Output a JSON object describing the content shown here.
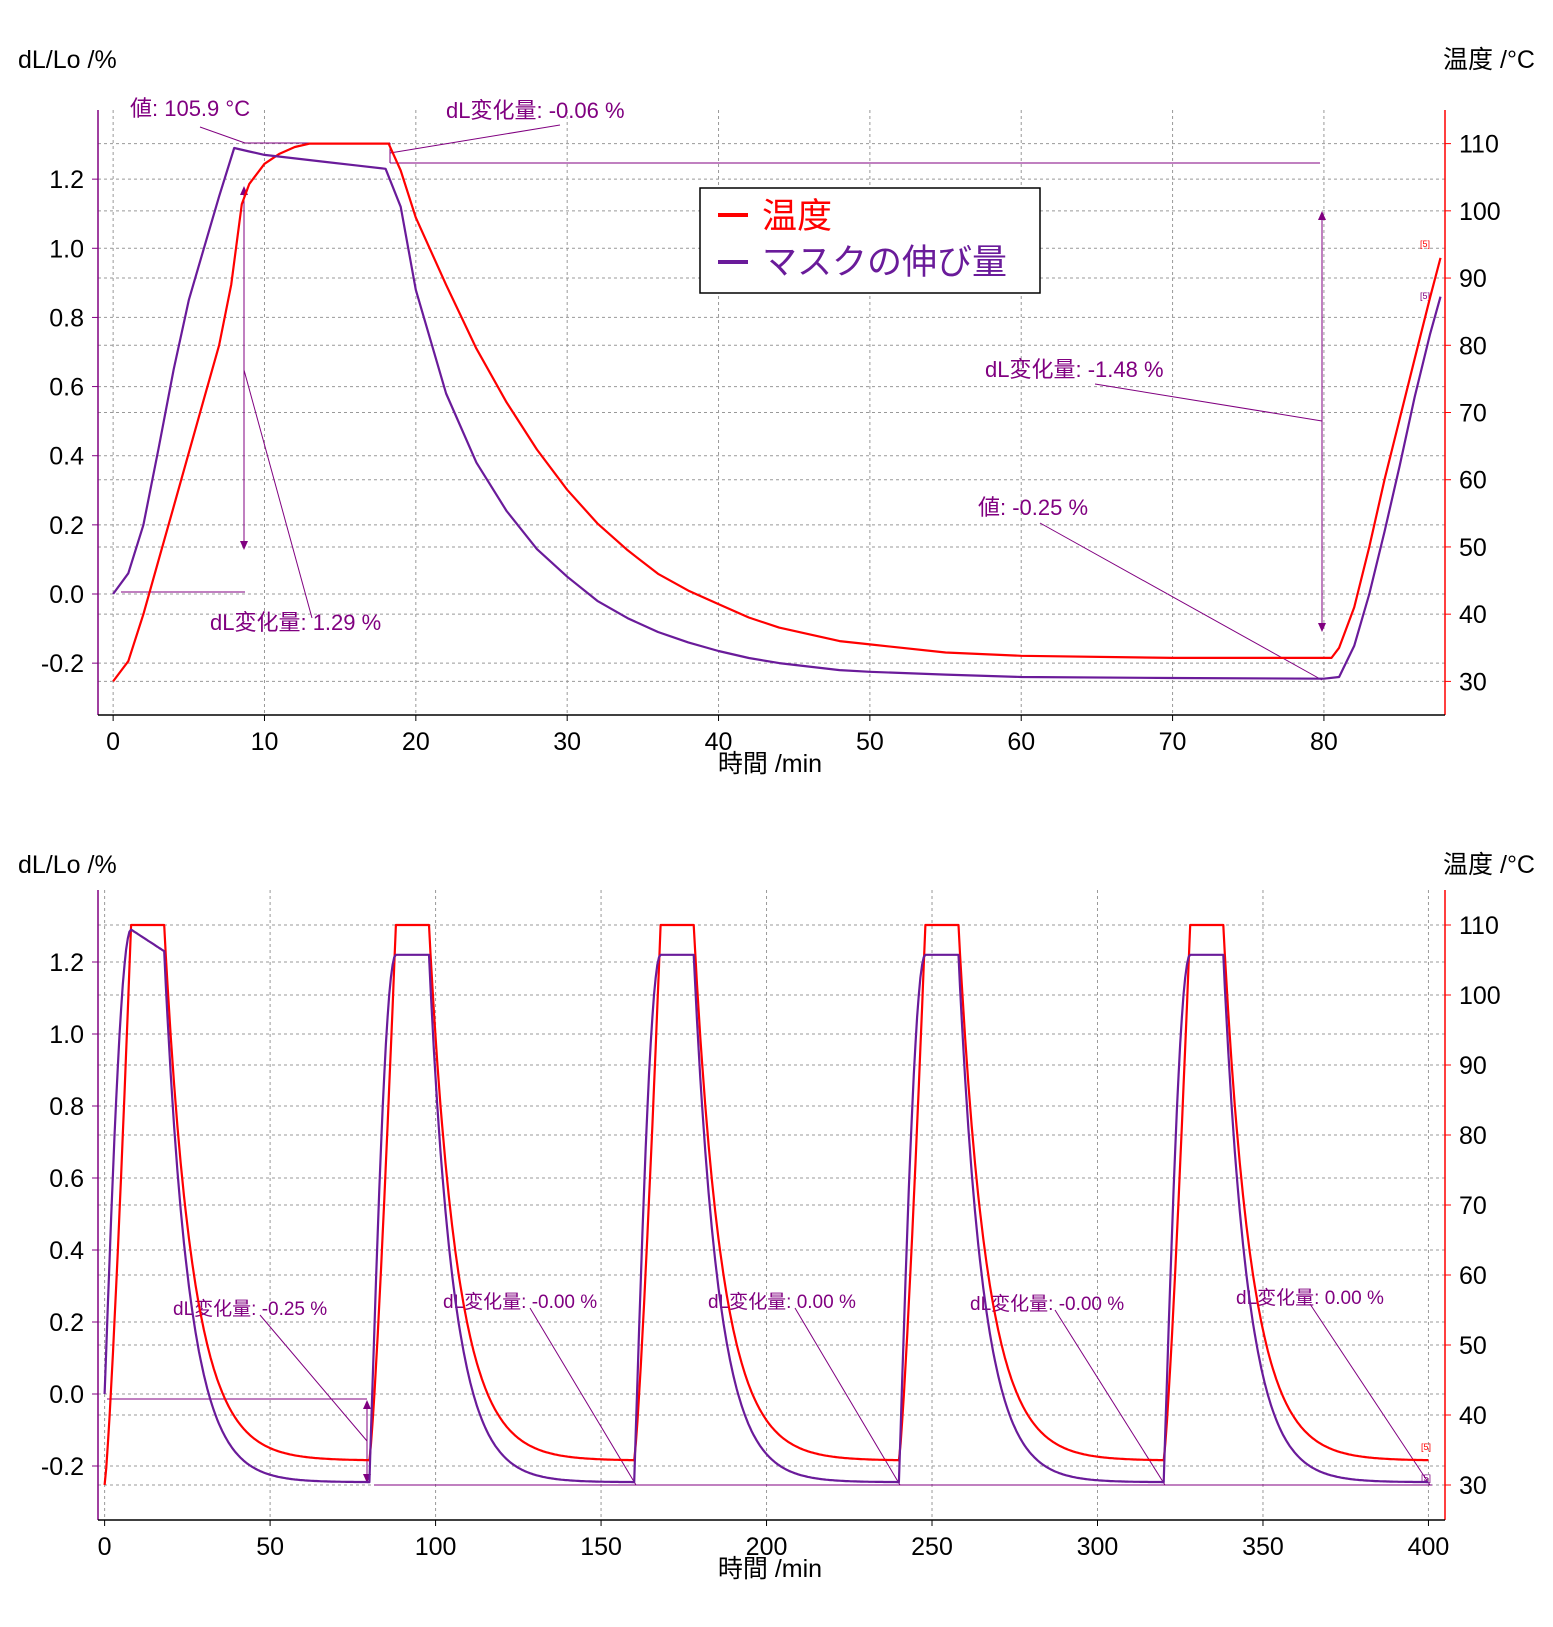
{
  "colors": {
    "temperature": "#ff0000",
    "elongation": "#6a1b9a",
    "annotation": "#800080",
    "grid": "#999999",
    "left_axis": "#800080",
    "right_axis": "#ff0000"
  },
  "chart_data": [
    {
      "type": "line",
      "title": "",
      "xlabel": "時間 /min",
      "ylabel_left": "dL/Lo /%",
      "ylabel_right": "温度 /°C",
      "xlim": [
        -1,
        88
      ],
      "ylim_left": [
        -0.35,
        1.4
      ],
      "ylim_right": [
        25,
        115
      ],
      "x_ticks": [
        "0",
        "10",
        "20",
        "30",
        "40",
        "50",
        "60",
        "70",
        "80"
      ],
      "y_left_ticks": [
        "-0.2",
        "0.0",
        "0.2",
        "0.4",
        "0.6",
        "0.8",
        "1.0",
        "1.2"
      ],
      "y_right_ticks": [
        "30",
        "40",
        "50",
        "60",
        "70",
        "80",
        "90",
        "100",
        "110"
      ],
      "grid": true,
      "legend": {
        "position": "top-center",
        "entries": [
          {
            "label": "温度",
            "series": "temperature"
          },
          {
            "label": "マスクの伸び量",
            "series": "elongation"
          }
        ]
      },
      "series": [
        {
          "name": "温度",
          "axis": "right",
          "points": [
            [
              0,
              30
            ],
            [
              1,
              33
            ],
            [
              2,
              40
            ],
            [
              3,
              48
            ],
            [
              4,
              56
            ],
            [
              5,
              64
            ],
            [
              6,
              72
            ],
            [
              7,
              80
            ],
            [
              7.8,
              89
            ],
            [
              8.5,
              101
            ],
            [
              9,
              104
            ],
            [
              10,
              107
            ],
            [
              11,
              108.5
            ],
            [
              12,
              109.5
            ],
            [
              13,
              110
            ],
            [
              18.2,
              110
            ],
            [
              19,
              106
            ],
            [
              20,
              99
            ],
            [
              22,
              89
            ],
            [
              24,
              79.5
            ],
            [
              26,
              71.5
            ],
            [
              28,
              64.5
            ],
            [
              30,
              58.5
            ],
            [
              32,
              53.5
            ],
            [
              34,
              49.5
            ],
            [
              36,
              46
            ],
            [
              38,
              43.5
            ],
            [
              40,
              41.5
            ],
            [
              42,
              39.5
            ],
            [
              44,
              38
            ],
            [
              46,
              37
            ],
            [
              48,
              36
            ],
            [
              50,
              35.5
            ],
            [
              55,
              34.3
            ],
            [
              60,
              33.8
            ],
            [
              70,
              33.5
            ],
            [
              80.5,
              33.5
            ],
            [
              81,
              35
            ],
            [
              82,
              41
            ],
            [
              83,
              50
            ],
            [
              84,
              60
            ],
            [
              85,
              69
            ],
            [
              86,
              78
            ],
            [
              87,
              87
            ],
            [
              87.7,
              93
            ]
          ]
        },
        {
          "name": "マスクの伸び量",
          "axis": "left",
          "points": [
            [
              0,
              0
            ],
            [
              1,
              0.06
            ],
            [
              2,
              0.2
            ],
            [
              3,
              0.42
            ],
            [
              4,
              0.65
            ],
            [
              5,
              0.85
            ],
            [
              6,
              1.0
            ],
            [
              7,
              1.15
            ],
            [
              8,
              1.29
            ],
            [
              9,
              1.28
            ],
            [
              10,
              1.27
            ],
            [
              12,
              1.26
            ],
            [
              14,
              1.25
            ],
            [
              16,
              1.24
            ],
            [
              18,
              1.23
            ],
            [
              19,
              1.12
            ],
            [
              20,
              0.88
            ],
            [
              22,
              0.58
            ],
            [
              24,
              0.38
            ],
            [
              26,
              0.24
            ],
            [
              28,
              0.13
            ],
            [
              30,
              0.05
            ],
            [
              32,
              -0.02
            ],
            [
              34,
              -0.07
            ],
            [
              36,
              -0.11
            ],
            [
              38,
              -0.14
            ],
            [
              40,
              -0.165
            ],
            [
              42,
              -0.185
            ],
            [
              44,
              -0.2
            ],
            [
              46,
              -0.21
            ],
            [
              48,
              -0.22
            ],
            [
              50,
              -0.225
            ],
            [
              55,
              -0.233
            ],
            [
              60,
              -0.24
            ],
            [
              70,
              -0.243
            ],
            [
              80,
              -0.245
            ],
            [
              81,
              -0.24
            ],
            [
              82,
              -0.15
            ],
            [
              83,
              0.0
            ],
            [
              84,
              0.18
            ],
            [
              85,
              0.37
            ],
            [
              86,
              0.57
            ],
            [
              87,
              0.75
            ],
            [
              87.7,
              0.86
            ]
          ]
        }
      ],
      "annotations": [
        {
          "text": "値: 105.9 °C"
        },
        {
          "text": "dL変化量: -0.06 %"
        },
        {
          "text": "dL変化量: 1.29 %"
        },
        {
          "text": "dL変化量: -1.48 %"
        },
        {
          "text": "値: -0.25 %"
        }
      ],
      "markers": [
        "[5]",
        "[5]"
      ]
    },
    {
      "type": "line",
      "title": "",
      "xlabel": "時間 /min",
      "ylabel_left": "dL/Lo /%",
      "ylabel_right": "温度 /°C",
      "xlim": [
        -2,
        405
      ],
      "ylim_left": [
        -0.35,
        1.4
      ],
      "ylim_right": [
        25,
        115
      ],
      "x_ticks": [
        "0",
        "50",
        "100",
        "150",
        "200",
        "250",
        "300",
        "350",
        "400"
      ],
      "y_left_ticks": [
        "-0.2",
        "0.0",
        "0.2",
        "0.4",
        "0.6",
        "0.8",
        "1.0",
        "1.2"
      ],
      "y_right_ticks": [
        "30",
        "40",
        "50",
        "60",
        "70",
        "80",
        "90",
        "100",
        "110"
      ],
      "grid": true,
      "cycles": {
        "starts": [
          0,
          80,
          160,
          240,
          320
        ],
        "temperature_start": [
          30,
          33.5,
          33.5,
          33.5,
          33.5
        ],
        "temperature_hold": 110,
        "temperature_end": 33.5,
        "elongation_start": [
          0,
          -0.245,
          -0.245,
          -0.245,
          -0.245
        ],
        "elongation_peak": [
          1.29,
          1.22,
          1.22,
          1.22,
          1.22
        ],
        "elongation_end": -0.245,
        "end_time": 400
      },
      "annotations": [
        {
          "text": "dL変化量: -0.25 %"
        },
        {
          "text": "dL変化量: -0.00 %"
        },
        {
          "text": "dL変化量: 0.00 %"
        },
        {
          "text": "dL変化量: -0.00 %"
        },
        {
          "text": "dL変化量: 0.00 %"
        }
      ],
      "markers": [
        "[5]",
        "[5]"
      ]
    }
  ]
}
